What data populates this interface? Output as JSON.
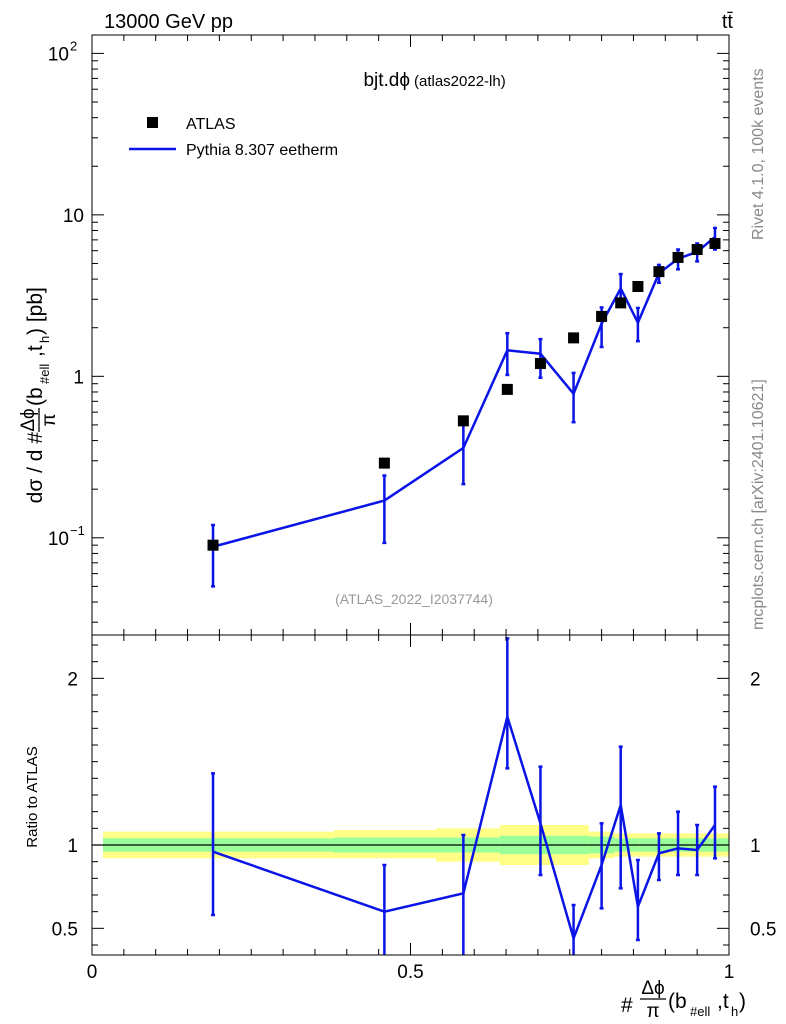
{
  "header": {
    "energy_label": "13000 GeV pp",
    "process_label": "tt̄"
  },
  "side_labels": {
    "rivet": "Rivet 4.1.0,  100k events",
    "mcplots": "mcplots.cern.ch [arXiv:2401.10621]"
  },
  "colors": {
    "data": "#000000",
    "mc": "#0a14e6",
    "band_inner": "#99ff99",
    "band_outer": "#ffff88"
  },
  "chart_data": [
    {
      "type": "scatter",
      "panel": "main",
      "title": "bjt.dϕ",
      "subtitle": "(atlas2022-lh)",
      "watermark": "(ATLAS_2022_I2037744)",
      "xlabel": "#Δϕ/π(b_#ell,t_h)",
      "ylabel": "dσ / d #Δϕ/π(b_#ell,t_h) [pb]",
      "yscale": "log",
      "xlim": [
        0,
        1
      ],
      "ylim": [
        0.025,
        130
      ],
      "yticks": [
        {
          "value": 100,
          "mantissa": "10",
          "exponent": "2"
        },
        {
          "value": 10,
          "mantissa": "10",
          "exponent": ""
        },
        {
          "value": 1,
          "mantissa": "1",
          "exponent": ""
        },
        {
          "value": 0.1,
          "mantissa": "10",
          "exponent": "−1"
        }
      ],
      "legend": [
        "ATLAS",
        "Pythia 8.307 eetherm"
      ],
      "legend_position": "top-left",
      "series": [
        {
          "name": "ATLAS",
          "style": "markers",
          "x": [
            0.19,
            0.459,
            0.583,
            0.652,
            0.704,
            0.756,
            0.8,
            0.83,
            0.857,
            0.89,
            0.92,
            0.95,
            0.978
          ],
          "y": [
            0.09,
            0.29,
            0.53,
            0.83,
            1.2,
            1.73,
            2.35,
            2.85,
            3.6,
            4.45,
            5.45,
            6.1,
            6.65
          ]
        },
        {
          "name": "Pythia 8.307 eetherm",
          "style": "line",
          "x": [
            0.19,
            0.459,
            0.583,
            0.652,
            0.704,
            0.756,
            0.8,
            0.83,
            0.857,
            0.89,
            0.92,
            0.95,
            0.978
          ],
          "y": [
            0.088,
            0.17,
            0.36,
            1.45,
            1.38,
            0.78,
            2.12,
            3.5,
            2.15,
            4.35,
            5.35,
            5.9,
            7.3
          ],
          "err_low": [
            0.038,
            0.077,
            0.145,
            0.43,
            0.4,
            0.26,
            0.6,
            0.8,
            0.5,
            0.55,
            0.75,
            0.75,
            1.2
          ],
          "err_high": [
            0.032,
            0.073,
            0.145,
            0.4,
            0.32,
            0.27,
            0.55,
            0.8,
            0.5,
            0.55,
            0.75,
            0.75,
            1.0
          ]
        }
      ]
    },
    {
      "type": "scatter",
      "panel": "ratio",
      "ylabel": "Ratio to ATLAS",
      "xlim": [
        0,
        1
      ],
      "ylim": [
        0.34,
        2.26
      ],
      "yticks": [
        "0.5",
        "1",
        "2"
      ],
      "xticks": [
        "0",
        "0.5",
        "1"
      ],
      "bands": {
        "edges": [
          0,
          0.38,
          0.54,
          0.64,
          0.78,
          0.82,
          0.86,
          1
        ],
        "inner_low": [
          0.96,
          0.955,
          0.955,
          0.945,
          0.95,
          0.96,
          0.96
        ],
        "inner_high": [
          1.04,
          1.045,
          1.045,
          1.055,
          1.05,
          1.04,
          1.04
        ],
        "outer_low": [
          0.92,
          0.92,
          0.9,
          0.88,
          0.92,
          0.93,
          0.93
        ],
        "outer_high": [
          1.08,
          1.09,
          1.1,
          1.12,
          1.08,
          1.07,
          1.07
        ]
      },
      "series": [
        {
          "name": "Pythia 8.307 eetherm / ATLAS",
          "style": "line",
          "x": [
            0.19,
            0.459,
            0.583,
            0.652,
            0.704,
            0.756,
            0.8,
            0.83,
            0.857,
            0.89,
            0.92,
            0.95,
            0.978
          ],
          "y": [
            0.96,
            0.6,
            0.71,
            1.77,
            1.13,
            0.44,
            0.88,
            1.24,
            0.63,
            0.95,
            0.98,
            0.97,
            1.12
          ],
          "err_low": [
            0.38,
            0.28,
            0.4,
            0.31,
            0.31,
            0.2,
            0.26,
            0.5,
            0.2,
            0.16,
            0.16,
            0.15,
            0.2
          ],
          "err_high": [
            0.47,
            0.28,
            0.35,
            0.47,
            0.34,
            0.2,
            0.25,
            0.35,
            0.28,
            0.12,
            0.22,
            0.15,
            0.23
          ]
        }
      ]
    }
  ]
}
